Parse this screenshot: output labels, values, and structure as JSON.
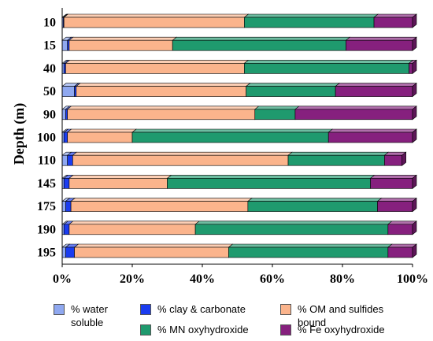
{
  "chart_data": {
    "type": "bar",
    "orientation": "horizontal",
    "stacked": "percent",
    "ylabel": "Depth (m)",
    "xlabel": "",
    "categories": [
      "10",
      "15",
      "40",
      "50",
      "90",
      "100",
      "110",
      "145",
      "175",
      "190",
      "195"
    ],
    "xlim": [
      0,
      100
    ],
    "xticks": [
      "0%",
      "20%",
      "40%",
      "60%",
      "80%",
      "100%"
    ],
    "grid": false,
    "legend_position": "bottom",
    "series": [
      {
        "name": "% water soluble",
        "color": "#8fa8f0",
        "values": [
          0.3,
          1.5,
          0.5,
          3.5,
          1.0,
          0.5,
          1.5,
          0.5,
          1.0,
          0.5,
          1.0
        ]
      },
      {
        "name": "% clay & carbonate",
        "color": "#1a3cf0",
        "values": [
          0.2,
          0.5,
          0.5,
          0.5,
          0.5,
          1.0,
          1.5,
          1.5,
          1.5,
          1.5,
          2.5
        ]
      },
      {
        "name": "% OM and sulfides bound",
        "color": "#fbb48c",
        "values": [
          51.5,
          29.5,
          51.0,
          48.5,
          53.5,
          18.5,
          61.5,
          28.0,
          50.5,
          36.0,
          44.0
        ]
      },
      {
        "name": "% MN oxyhydroxide",
        "color": "#1f9a6e",
        "values": [
          37.0,
          49.5,
          47.0,
          25.5,
          11.5,
          56.0,
          27.5,
          58.0,
          37.0,
          55.0,
          45.5
        ]
      },
      {
        "name": "% Fe oxyhydroxide",
        "color": "#86207e",
        "values": [
          11.0,
          19.0,
          1.0,
          22.0,
          33.5,
          24.0,
          5.0,
          12.0,
          10.0,
          7.0,
          7.0
        ]
      }
    ]
  }
}
